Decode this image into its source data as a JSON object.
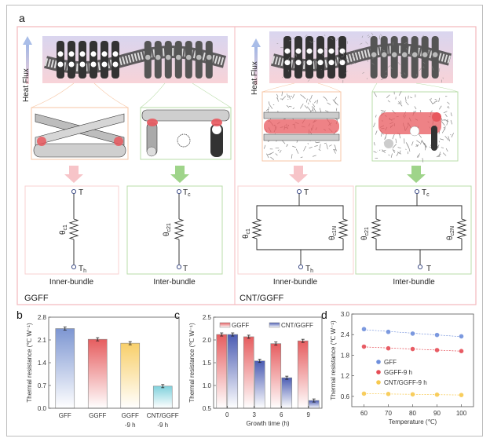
{
  "panel_a": {
    "letter": "a",
    "heat_flux": "Heat Flux",
    "ggff": {
      "title": "GGFF",
      "inner": {
        "label": "Inner-bundle",
        "top": "T",
        "bottom": "T",
        "bottom_sub": "h",
        "res": "θ",
        "res_sub": "c1"
      },
      "inter": {
        "label": "Inter-bundle",
        "top": "T",
        "top_sub": "c",
        "bottom": "T",
        "res": "θ",
        "res_sub": "c21"
      }
    },
    "cnt_ggff": {
      "title": "CNT/GGFF",
      "inner": {
        "label": "Inner-bundle",
        "top": "T",
        "bottom": "T",
        "bottom_sub": "h",
        "res_left": "θ",
        "res_left_sub": "c1",
        "res_right": "θ",
        "res_right_sub": "c1N"
      },
      "inter": {
        "label": "Inter-bundle",
        "top": "T",
        "top_sub": "c",
        "bottom": "T",
        "res_left": "θ",
        "res_left_sub": "c21",
        "res_right": "θ",
        "res_right_sub": "c2N"
      }
    },
    "colors": {
      "frame": "#f4b8bc",
      "inner_box": "#f7c6a4",
      "inter_box": "#b9dca8",
      "contact": "#e8585e",
      "arrow_inner": "#f7c4c8",
      "arrow_inter": "#9fd48a",
      "heat_arrow": "#a9bde8"
    }
  },
  "chart_data": [
    {
      "panel": "b",
      "type": "bar",
      "categories": [
        [
          "GFF"
        ],
        [
          "GGFF"
        ],
        [
          "GGFF",
          "-9 h"
        ],
        [
          "CNT/GGFF",
          "-9 h"
        ]
      ],
      "values": [
        2.45,
        2.12,
        2.0,
        0.68
      ],
      "colors": [
        "#7d96d2",
        "#e65d5f",
        "#f8cf6a",
        "#7fd1dc"
      ],
      "xlabel": "",
      "ylabel": "Thermal resistance (℃ W⁻¹)",
      "ylim": [
        0,
        2.8
      ],
      "yticks": [
        "0.0",
        "0.7",
        "1.4",
        "2.1",
        "2.8"
      ],
      "error_bars": true
    },
    {
      "panel": "c",
      "type": "bar",
      "categories": [
        "0",
        "3",
        "6",
        "9"
      ],
      "series": [
        {
          "name": "GGFF",
          "values": [
            2.12,
            2.07,
            1.92,
            1.98
          ],
          "color": "#e65d5f"
        },
        {
          "name": "CNT/GGFF",
          "values": [
            2.12,
            1.54,
            1.17,
            0.67
          ],
          "color": "#4b5cb3"
        }
      ],
      "xlabel": "Growth time (h)",
      "ylabel": "Thermal resistance (℃ W⁻¹)",
      "ylim": [
        0.5,
        2.5
      ],
      "yticks": [
        "0.5",
        "1.0",
        "1.5",
        "2.0",
        "2.5"
      ],
      "legend": "top",
      "error_bars": true
    },
    {
      "panel": "d",
      "type": "scatter",
      "x": [
        60,
        70,
        80,
        90,
        100
      ],
      "series": [
        {
          "name": "GFF",
          "values": [
            2.56,
            2.48,
            2.43,
            2.39,
            2.35
          ],
          "color": "#6f8fdc"
        },
        {
          "name": "GGFF-9 h",
          "values": [
            2.05,
            2.0,
            1.98,
            1.95,
            1.92
          ],
          "color": "#e54c55"
        },
        {
          "name": "CNT/GGFF-9 h",
          "values": [
            0.68,
            0.67,
            0.66,
            0.65,
            0.64
          ],
          "color": "#f7c94f"
        }
      ],
      "xlabel": "Temperature (℃)",
      "ylabel": "Thermal resistance (℃ W⁻¹)",
      "xlim": [
        55,
        105
      ],
      "ylim": [
        0.3,
        3.0
      ],
      "xticks": [
        "60",
        "70",
        "80",
        "90",
        "100"
      ],
      "yticks": [
        "0.6",
        "1.2",
        "1.8",
        "2.4",
        "3.0"
      ],
      "trend_lines": "dashed linear fit",
      "legend": "center-left"
    }
  ]
}
